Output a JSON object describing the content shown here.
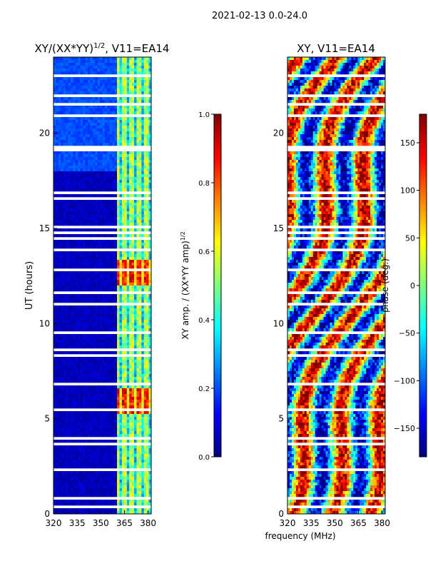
{
  "suptitle": "2021-02-13 0.0-24.0",
  "colormap": [
    "#00007f",
    "#0000ff",
    "#007fff",
    "#00ffff",
    "#7fff7f",
    "#ffff00",
    "#ff7f00",
    "#ff0000",
    "#7f0000"
  ],
  "chart_data": [
    {
      "type": "heatmap",
      "title_main": "XY/(XX*YY)",
      "title_exp": "1/2",
      "title_suffix": ", V11=EA14",
      "ylabel": "UT (hours)",
      "xlim": [
        320,
        382
      ],
      "ylim": [
        0,
        24
      ],
      "xticks": [
        320,
        335,
        350,
        365,
        380
      ],
      "yticks": [
        0,
        5,
        10,
        15,
        20
      ],
      "colorbar": {
        "label_main": "XY amp. / (XX*YY amp)",
        "label_exp": "1/2",
        "range": [
          0.0,
          1.0
        ],
        "ticks": [
          "0.0",
          "0.2",
          "0.4",
          "0.6",
          "0.8",
          "1.0"
        ]
      }
    },
    {
      "type": "heatmap",
      "title": "XY, V11=EA14",
      "xlabel": "frequency (MHz)",
      "xlim": [
        320,
        382
      ],
      "ylim": [
        0,
        24
      ],
      "xticks": [
        320,
        335,
        350,
        365,
        380
      ],
      "yticks": [
        0,
        5,
        10,
        15,
        20
      ],
      "colorbar": {
        "label": "phase (deg.)",
        "range": [
          -180,
          180
        ],
        "ticks": [
          "−150",
          "−100",
          "−50",
          "0",
          "50",
          "100",
          "150"
        ]
      }
    }
  ]
}
